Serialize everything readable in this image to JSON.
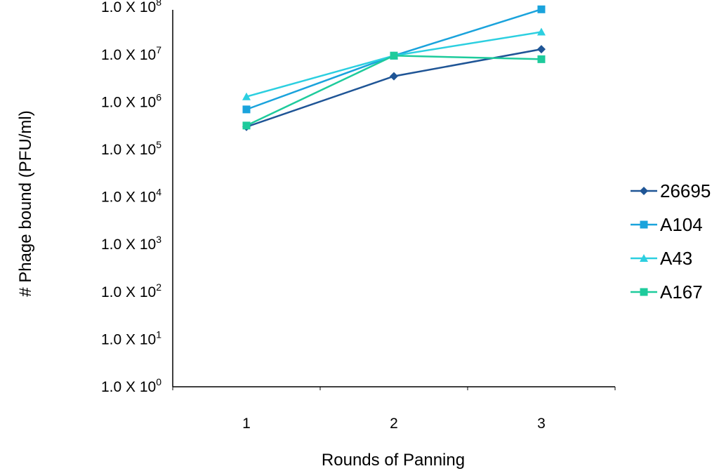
{
  "chart_data": {
    "type": "line",
    "title": "",
    "xlabel": "Rounds of Panning",
    "ylabel": "# Phage bound (PFU/ml)",
    "y_scale": "log",
    "ylim": [
      1,
      100000000
    ],
    "grid": false,
    "legend_position": "right",
    "categories": [
      "1",
      "2",
      "3"
    ],
    "y_tick_labels": [
      {
        "value": 1,
        "base": "1.0 X 10",
        "exp": "0"
      },
      {
        "value": 10,
        "base": "1.0 X 10",
        "exp": "1"
      },
      {
        "value": 100,
        "base": "1.0 X 10",
        "exp": "2"
      },
      {
        "value": 1000,
        "base": "1.0 X 10",
        "exp": "3"
      },
      {
        "value": 10000,
        "base": "1.0 X 10",
        "exp": "4"
      },
      {
        "value": 100000,
        "base": "1.0 X 10",
        "exp": "5"
      },
      {
        "value": 1000000,
        "base": "1.0 X 10",
        "exp": "6"
      },
      {
        "value": 10000000,
        "base": "1.0 X 10",
        "exp": "7"
      },
      {
        "value": 100000000,
        "base": "1.0 X 10",
        "exp": "8"
      }
    ],
    "series": [
      {
        "name": "26695",
        "color": "#1f5596",
        "marker": "diamond",
        "values": [
          300000,
          3500000,
          13000000
        ]
      },
      {
        "name": "A104",
        "color": "#1aa3dc",
        "marker": "square",
        "values": [
          700000,
          9500000,
          90000000
        ]
      },
      {
        "name": "A43",
        "color": "#2ccfe0",
        "marker": "triangle",
        "values": [
          1300000,
          9500000,
          30000000
        ]
      },
      {
        "name": "A167",
        "color": "#1ecb9c",
        "marker": "square",
        "values": [
          320000,
          9500000,
          8000000
        ]
      }
    ]
  }
}
